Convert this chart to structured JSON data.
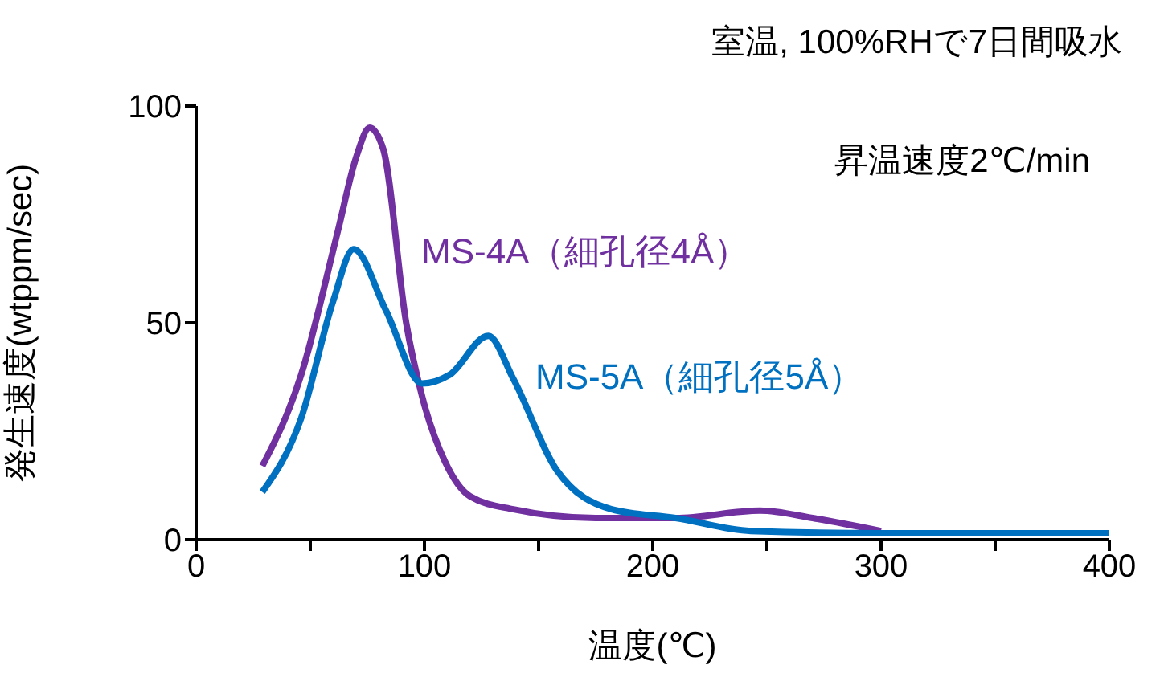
{
  "chart_data": {
    "type": "line",
    "title": "室温, 100%RHで7日間吸水",
    "xlabel": "温度(℃)",
    "ylabel": "発生速度(wtppm/sec)",
    "annotations": [
      "昇温速度2℃/min"
    ],
    "xlim": [
      0,
      400
    ],
    "xticks": [
      0,
      {
        "value": 50,
        "label": null
      },
      100,
      {
        "value": 150,
        "label": null
      },
      200,
      {
        "value": 250,
        "label": null
      },
      300,
      {
        "value": 350,
        "label": null
      },
      400
    ],
    "ylim": [
      0,
      100
    ],
    "yticks": [
      0,
      50,
      100
    ],
    "grid": false,
    "legend": false,
    "marker": "none",
    "line_style": "solid",
    "series": [
      {
        "name": "MS-4A（細孔径4Å）",
        "color": "#7030a0",
        "x": [
          29,
          46,
          62,
          70,
          76,
          82,
          92,
          99,
          109,
          120,
          139,
          175,
          210,
          247,
          270,
          300
        ],
        "values": [
          17,
          38,
          71,
          88,
          95,
          90,
          50,
          33,
          18,
          10,
          7,
          5,
          5,
          6.7,
          5,
          2
        ]
      },
      {
        "name": "MS-5A（細孔径5Å）",
        "color": "#0070c0",
        "x": [
          29,
          46,
          60,
          69,
          83,
          99,
          111,
          128,
          139,
          158,
          182,
          210,
          243,
          300,
          350,
          400
        ],
        "values": [
          11,
          28,
          55,
          67,
          53,
          36,
          38,
          47,
          37,
          16,
          7,
          5,
          2,
          1.5,
          1.5,
          1.5
        ]
      }
    ]
  }
}
